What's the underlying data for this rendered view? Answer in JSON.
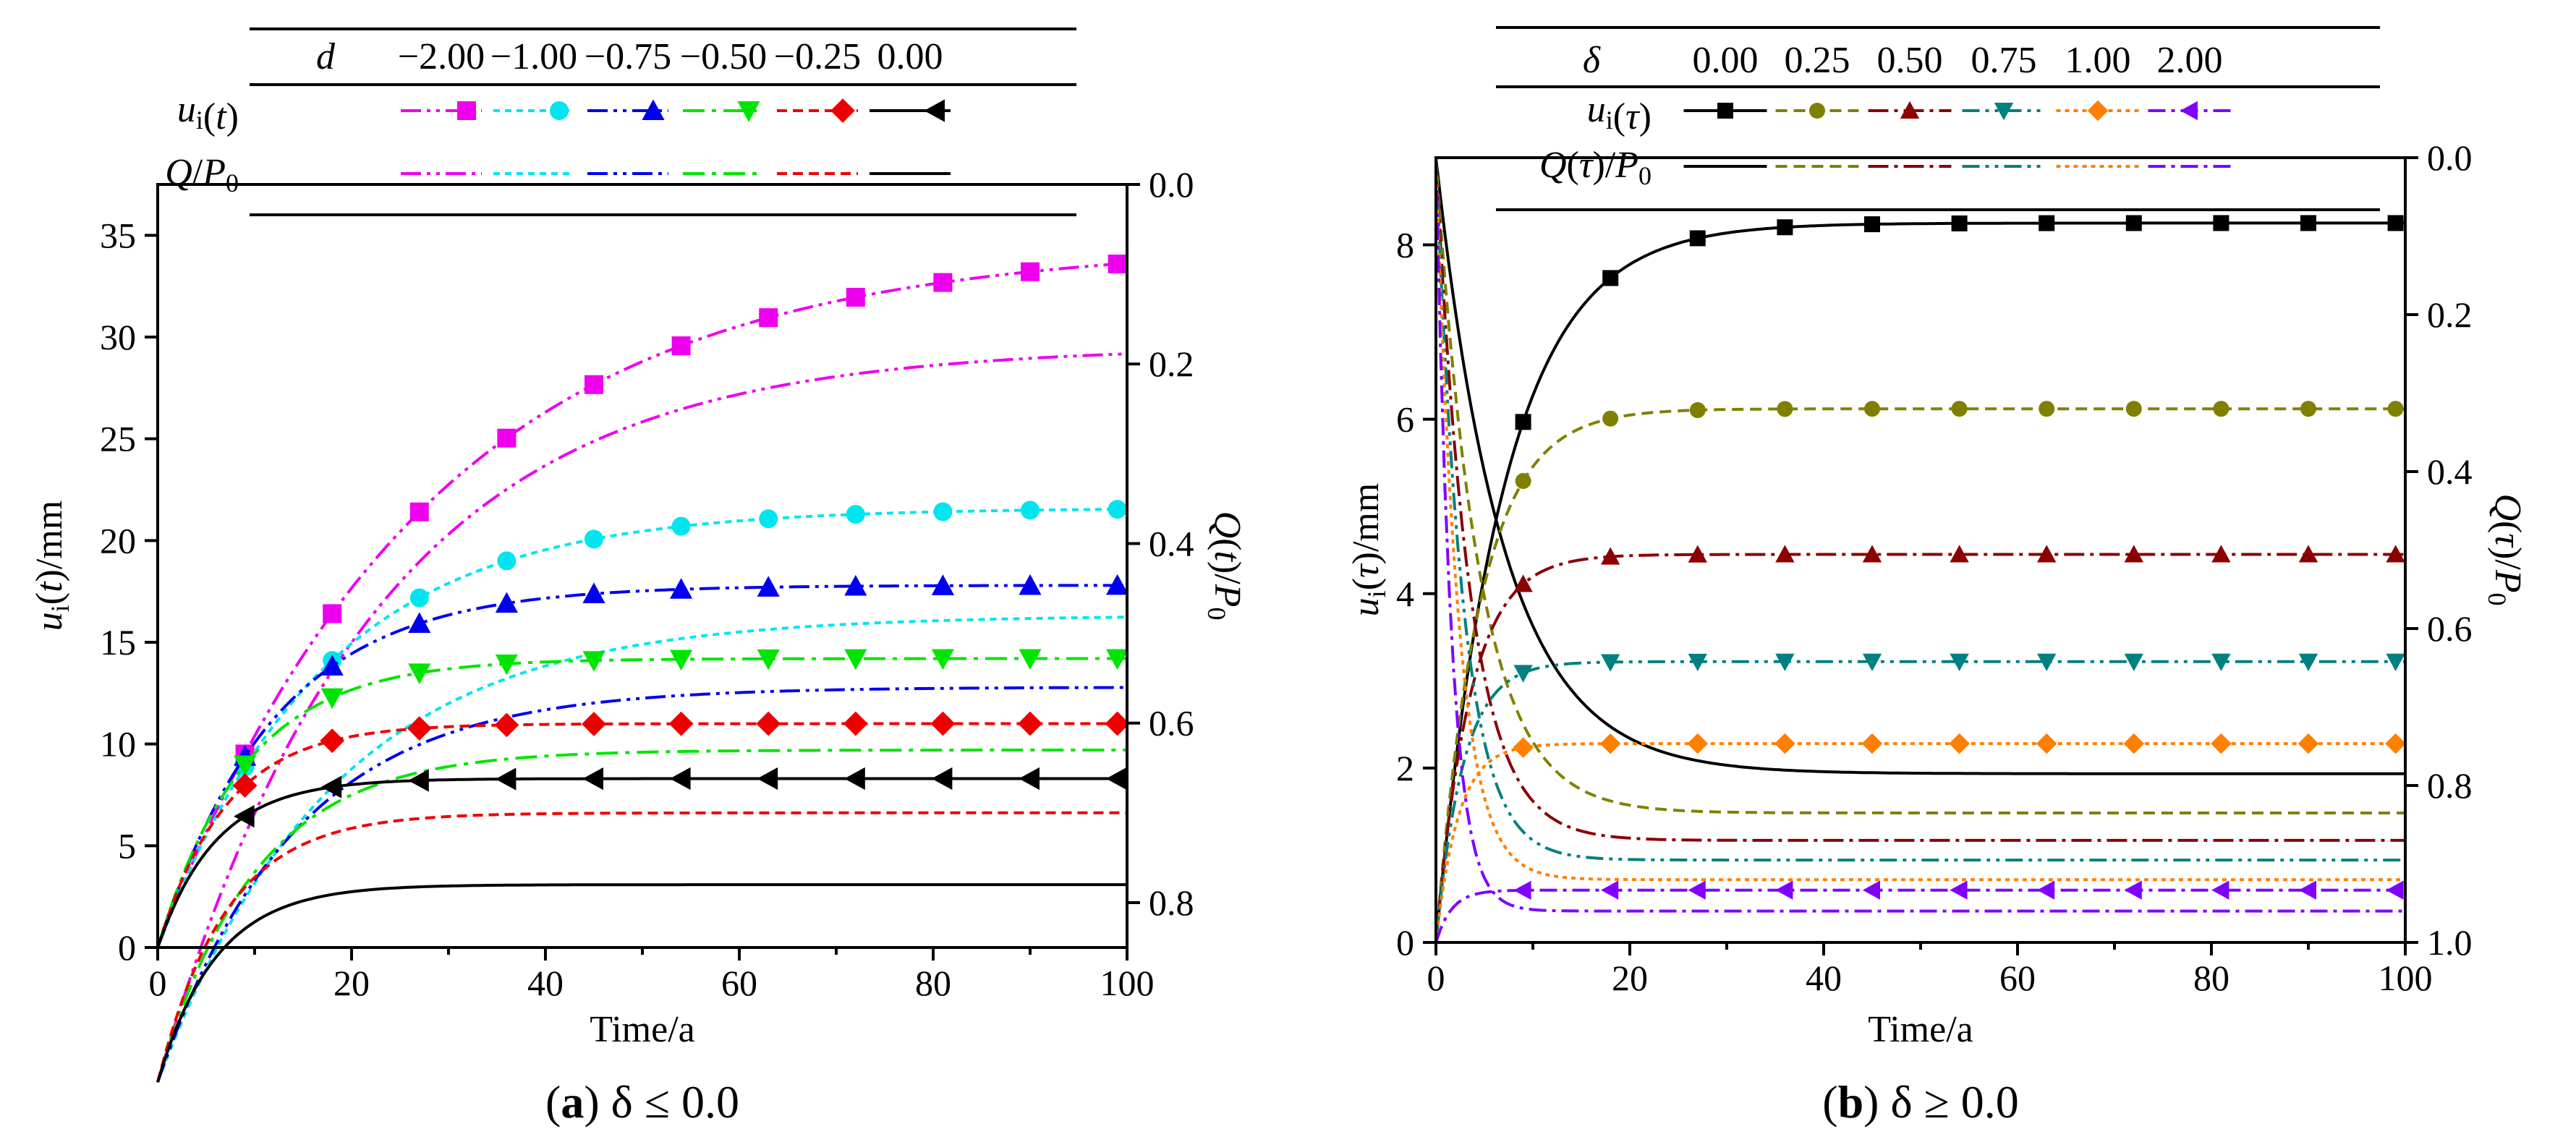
{
  "captions": {
    "a_letter": "a",
    "a_text": " δ ≤ 0.0",
    "b_letter": "b",
    "b_text": " δ ≥ 0.0"
  },
  "chart_data": [
    {
      "id": "a",
      "type": "line",
      "xlabel": "Time/a",
      "ylabel": "ui(t)/mm",
      "ylabel_right": "Q(t)/P0",
      "xlim": [
        0,
        100
      ],
      "ylim": [
        0,
        37.5
      ],
      "y2lim": [
        0.0,
        0.85
      ],
      "y2_reversed": true,
      "xticks": [
        "0",
        "20",
        "40",
        "60",
        "80",
        "100"
      ],
      "yticks": [
        "0",
        "5",
        "10",
        "15",
        "20",
        "25",
        "30",
        "35"
      ],
      "y2ticks": [
        "0.0",
        "0.2",
        "0.4",
        "0.6",
        "0.8"
      ],
      "legend": {
        "param_symbol": "d",
        "param_values": [
          "−2.00",
          "−1.00",
          "−0.75",
          "−0.50",
          "−0.25",
          "0.00"
        ],
        "row1_label": "ui(t)",
        "row2_label": "Q/P0",
        "q_row_series": [
          0,
          1,
          2,
          3,
          4,
          5
        ]
      },
      "series": [
        {
          "d": "−2.00",
          "color": "#ee00ee",
          "marker": "square",
          "dash": "28 8 5 8 5 8",
          "u_final": 34.6,
          "u_tau": 28,
          "q_final": 0.18,
          "q_tau": 22
        },
        {
          "d": "−1.00",
          "color": "#00e5ee",
          "marker": "circle",
          "dash": "9 7",
          "u_final": 21.6,
          "u_tau": 17,
          "q_final": 0.48,
          "q_tau": 18
        },
        {
          "d": "−0.75",
          "color": "#0000ee",
          "marker": "triangle-up",
          "dash": "28 8 5 8 5 8",
          "u_final": 17.8,
          "u_tau": 12,
          "q_final": 0.56,
          "q_tau": 14
        },
        {
          "d": "−0.50",
          "color": "#00e500",
          "marker": "triangle-down",
          "dash": "30 10 6 10",
          "u_final": 14.2,
          "u_tau": 9,
          "q_final": 0.63,
          "q_tau": 10
        },
        {
          "d": "−0.25",
          "color": "#ee0000",
          "marker": "diamond",
          "dash": "14 8",
          "u_final": 11.0,
          "u_tau": 7,
          "q_final": 0.7,
          "q_tau": 7
        },
        {
          "d": "0.00",
          "color": "#000000",
          "marker": "triangle-left",
          "dash": "",
          "u_final": 8.3,
          "u_tau": 6,
          "q_final": 0.78,
          "q_tau": 6
        }
      ]
    },
    {
      "id": "b",
      "type": "line",
      "xlabel": "Time/a",
      "ylabel": "ui(τ)/mm",
      "ylabel_right": "Q(τ)/P0",
      "xlim": [
        0,
        100
      ],
      "ylim": [
        0,
        9.0
      ],
      "y2lim": [
        0.0,
        1.0
      ],
      "y2_reversed": true,
      "xticks": [
        "0",
        "20",
        "40",
        "60",
        "80",
        "100"
      ],
      "yticks": [
        "0",
        "2",
        "4",
        "6",
        "8"
      ],
      "y2ticks": [
        "0.0",
        "0.2",
        "0.4",
        "0.6",
        "0.8",
        "1.0"
      ],
      "legend": {
        "param_symbol": "δ",
        "param_values": [
          "0.00",
          "0.25",
          "0.50",
          "0.75",
          "1.00",
          "2.00"
        ],
        "row1_label": "ui(τ)",
        "row2_label": "Q(τ)/P0",
        "q_row_series": [
          0,
          1,
          2,
          3,
          4,
          5
        ]
      },
      "series": [
        {
          "delta": "0.00",
          "color": "#000000",
          "marker": "square",
          "dash": "",
          "u_final": 8.25,
          "u_tau": 7,
          "q_final": 0.785,
          "q_tau": 7
        },
        {
          "delta": "0.25",
          "color": "#808000",
          "marker": "circle",
          "dash": "16 9",
          "u_final": 6.12,
          "u_tau": 4.5,
          "q_final": 0.835,
          "q_tau": 4.5
        },
        {
          "delta": "0.50",
          "color": "#8b0000",
          "marker": "triangle-up",
          "dash": "28 8 5 8",
          "u_final": 4.45,
          "u_tau": 3.5,
          "q_final": 0.87,
          "q_tau": 3.5
        },
        {
          "delta": "0.75",
          "color": "#008080",
          "marker": "triangle-down",
          "dash": "24 8 5 8 5 8",
          "u_final": 3.22,
          "u_tau": 2.8,
          "q_final": 0.895,
          "q_tau": 2.8
        },
        {
          "delta": "1.00",
          "color": "#ff7f00",
          "marker": "diamond",
          "dash": "6 6",
          "u_final": 2.28,
          "u_tau": 2.3,
          "q_final": 0.92,
          "q_tau": 2.3
        },
        {
          "delta": "2.00",
          "color": "#8000ff",
          "marker": "triangle-left",
          "dash": "24 8 5 8",
          "u_final": 0.6,
          "u_tau": 1.6,
          "q_final": 0.96,
          "q_tau": 1.6
        }
      ]
    }
  ]
}
